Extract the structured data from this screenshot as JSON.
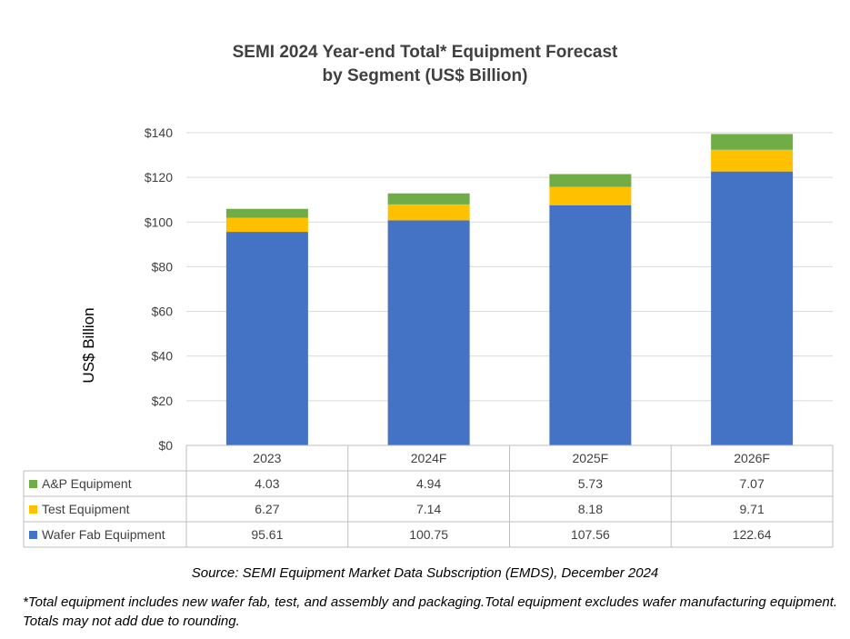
{
  "chart_data": {
    "type": "bar",
    "stacked": true,
    "title": "SEMI 2024 Year-end Total* Equipment Forecast",
    "subtitle": "by Segment (US$ Billion)",
    "ylabel": "US$ Billion",
    "xlabel": "",
    "ylim": [
      0,
      140
    ],
    "yticks": [
      0,
      20,
      40,
      60,
      80,
      100,
      120,
      140
    ],
    "ytick_labels": [
      "$0",
      "$20",
      "$40",
      "$60",
      "$80",
      "$100",
      "$120",
      "$140"
    ],
    "grid": true,
    "legend": "data-table-left",
    "categories": [
      "2023",
      "2024F",
      "2025F",
      "2026F"
    ],
    "series": [
      {
        "name": "Wafer Fab Equipment",
        "color": "#4472C4",
        "values": [
          95.61,
          100.75,
          107.56,
          122.64
        ],
        "labels": [
          "95.61",
          "100.75",
          "107.56",
          "122.64"
        ]
      },
      {
        "name": "Test Equipment",
        "color": "#FFC000",
        "values": [
          6.27,
          7.14,
          8.18,
          9.71
        ],
        "labels": [
          "6.27",
          "7.14",
          "8.18",
          "9.71"
        ]
      },
      {
        "name": "A&P Equipment",
        "color": "#70AD47",
        "values": [
          4.03,
          4.94,
          5.73,
          7.07
        ],
        "labels": [
          "4.03",
          "4.94",
          "5.73",
          "7.07"
        ]
      }
    ],
    "table_row_order": [
      "A&P Equipment",
      "Test Equipment",
      "Wafer Fab Equipment"
    ]
  },
  "footer": {
    "source": "Source: SEMI Equipment Market Data Subscription (EMDS), December 2024",
    "note": "*Total equipment includes new wafer fab, test, and assembly and packaging.Total equipment excludes wafer manufacturing equipment. Totals may not add due to rounding."
  }
}
